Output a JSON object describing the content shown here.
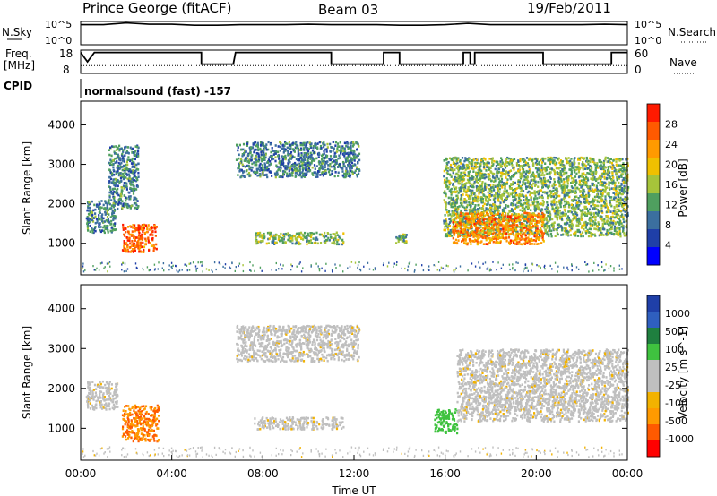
{
  "header": {
    "station": "Prince George (fitACF)",
    "beam": "Beam 03",
    "date": "19/Feb/2011"
  },
  "panels": {
    "nsky_label": "N.Sky",
    "nsky_scale_top": "10^5",
    "nsky_scale_bottom": "10^0",
    "nsearch_label": "N.Search",
    "nsearch_scale_top": "10^5",
    "nsearch_scale_bottom": "10^0",
    "freq_label_line1": "Freq.",
    "freq_label_line2": "[MHz]",
    "freq_ticks": [
      "18",
      "8"
    ],
    "nave_label": "Nave",
    "nave_ticks": [
      "60",
      "0"
    ],
    "cpid_label": "CPID",
    "cpid_text": "normalsound (fast) -157"
  },
  "colors": {
    "power_scale": [
      "#0000ff",
      "#1f3fa8",
      "#3b6f9f",
      "#4f9f5f",
      "#a6c43a",
      "#f0c000",
      "#ff9a00",
      "#ff5a00",
      "#ff1a00"
    ],
    "velocity_scale": [
      "#ff0000",
      "#ff5a00",
      "#ff9a00",
      "#f2b200",
      "#bfbfbf",
      "#bfbfbf",
      "#3fc23f",
      "#1f7f3f",
      "#2f5fbf",
      "#1f3fa8"
    ]
  },
  "chart_data": [
    {
      "type": "heatmap",
      "quantity": "power",
      "ylabel": "Slant Range [km]",
      "ylim": [
        200,
        4600
      ],
      "yticks": [
        "1000",
        "2000",
        "3000",
        "4000"
      ],
      "colorbar_label": "Power [dB]",
      "colorbar_ticks": [
        "4",
        "8",
        "12",
        "16",
        "20",
        "24",
        "28"
      ],
      "xlim": [
        0,
        24
      ],
      "regions": [
        {
          "t0": 0.2,
          "t1": 1.5,
          "r0": 1300,
          "r1": 2100,
          "level": 8
        },
        {
          "t0": 1.2,
          "t1": 2.5,
          "r0": 1900,
          "r1": 3500,
          "level": 8
        },
        {
          "t0": 1.8,
          "t1": 3.3,
          "r0": 800,
          "r1": 1500,
          "level": 24
        },
        {
          "t0": 6.8,
          "t1": 12.2,
          "r0": 2700,
          "r1": 3600,
          "level": 8
        },
        {
          "t0": 7.6,
          "t1": 11.5,
          "r0": 1000,
          "r1": 1300,
          "level": 12
        },
        {
          "t0": 13.8,
          "t1": 14.3,
          "r0": 1000,
          "r1": 1250,
          "level": 12
        },
        {
          "t0": 15.9,
          "t1": 24,
          "r0": 1200,
          "r1": 3200,
          "level": 12
        },
        {
          "t0": 16.3,
          "t1": 20.3,
          "r0": 1000,
          "r1": 1800,
          "level": 22
        }
      ]
    },
    {
      "type": "heatmap",
      "quantity": "velocity",
      "ylabel": "Slant Range [km]",
      "ylim": [
        200,
        4600
      ],
      "yticks": [
        "1000",
        "2000",
        "3000",
        "4000"
      ],
      "colorbar_label": "Velocity [m s^-1]",
      "colorbar_ticks": [
        "1000",
        "500",
        "100",
        "25",
        "-25",
        "-100",
        "-500",
        "-1000"
      ],
      "xlim": [
        0,
        24
      ],
      "xticks": [
        "00:00",
        "04:00",
        "08:00",
        "12:00",
        "16:00",
        "20:00",
        "00:00"
      ],
      "xlabel": "Time UT",
      "regions": [
        {
          "t0": 0.2,
          "t1": 1.6,
          "r0": 1500,
          "r1": 2200,
          "velocity": 0
        },
        {
          "t0": 1.8,
          "t1": 3.4,
          "r0": 700,
          "r1": 1600,
          "velocity": -300
        },
        {
          "t0": 6.8,
          "t1": 12.2,
          "r0": 2700,
          "r1": 3600,
          "velocity": 0
        },
        {
          "t0": 7.6,
          "t1": 11.5,
          "r0": 1000,
          "r1": 1300,
          "velocity": 0
        },
        {
          "t0": 15.5,
          "t1": 16.5,
          "r0": 900,
          "r1": 1500,
          "velocity": 200
        },
        {
          "t0": 16.5,
          "t1": 24,
          "r0": 1200,
          "r1": 3000,
          "velocity": 0
        }
      ]
    }
  ],
  "freq_series": {
    "x": [
      0.0,
      0.3,
      0.6,
      5.3,
      5.3,
      6.7,
      6.8,
      11.0,
      11.0,
      13.3,
      13.3,
      14.0,
      14.0,
      16.8,
      16.8,
      17.1,
      17.1,
      17.3,
      17.3,
      20.3,
      20.3,
      23.3,
      23.3,
      24.0
    ],
    "y": [
      17,
      13,
      17,
      17,
      12,
      12,
      17,
      17,
      12,
      12,
      17,
      17,
      12,
      12,
      17,
      17,
      12,
      12,
      17,
      17,
      12,
      12,
      17,
      17
    ]
  },
  "nave_series": {
    "x": [
      0.0,
      0.3,
      0.6,
      5.3,
      5.3,
      6.7,
      6.8,
      11.0,
      11.0,
      13.3,
      13.3,
      14.0,
      14.0,
      16.8,
      16.8,
      17.1,
      17.1,
      17.3,
      17.3,
      20.3,
      20.3,
      23.3,
      23.3,
      24.0
    ],
    "y": [
      20,
      20,
      20,
      20,
      20,
      20,
      20,
      20,
      20,
      20,
      20,
      20,
      20,
      20,
      20,
      20,
      20,
      20,
      20,
      20,
      20,
      20,
      20,
      20
    ]
  },
  "nsky_series": {
    "x": [
      0,
      0.5,
      1.0,
      2.0,
      3.0,
      4.0,
      5.0,
      6.0,
      7.0,
      8.0,
      9.0,
      10.0,
      11.0,
      12.0,
      13.0,
      14.0,
      15.0,
      16.0,
      17.0,
      18.0,
      19.0,
      20.0,
      21.0,
      22.0,
      23.0,
      24.0
    ],
    "y": [
      4.3,
      4.3,
      4.3,
      4.7,
      4.4,
      4.4,
      4.2,
      4.2,
      4.3,
      4.3,
      4.3,
      4.4,
      4.3,
      4.3,
      4.3,
      4.2,
      4.2,
      4.3,
      4.6,
      4.3,
      4.3,
      4.3,
      4.3,
      4.3,
      4.4,
      4.3
    ]
  }
}
